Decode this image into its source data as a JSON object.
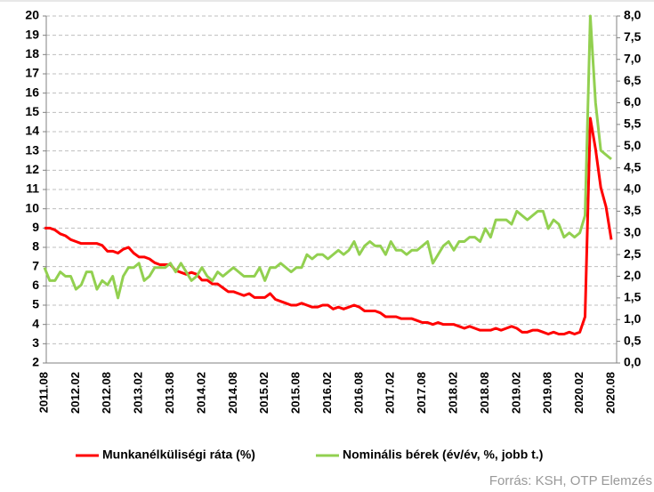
{
  "chart_data": {
    "type": "line",
    "categories": [
      "2011.08",
      null,
      null,
      null,
      null,
      null,
      "2012.02",
      null,
      null,
      null,
      null,
      null,
      "2012.08",
      null,
      null,
      null,
      null,
      null,
      "2013.02",
      null,
      null,
      null,
      null,
      null,
      "2013.08",
      null,
      null,
      null,
      null,
      null,
      "2014.02",
      null,
      null,
      null,
      null,
      null,
      "2014.08",
      null,
      null,
      null,
      null,
      null,
      "2015.02",
      null,
      null,
      null,
      null,
      null,
      "2015.08",
      null,
      null,
      null,
      null,
      null,
      "2016.02",
      null,
      null,
      null,
      null,
      null,
      "2016.08",
      null,
      null,
      null,
      null,
      null,
      "2017.02",
      null,
      null,
      null,
      null,
      null,
      "2017.08",
      null,
      null,
      null,
      null,
      null,
      "2018.02",
      null,
      null,
      null,
      null,
      null,
      "2018.08",
      null,
      null,
      null,
      null,
      null,
      "2019.02",
      null,
      null,
      null,
      null,
      null,
      "2019.08",
      null,
      null,
      null,
      null,
      null,
      "2020.02",
      null,
      null,
      null,
      null,
      null,
      "2020.08"
    ],
    "series": [
      {
        "name": "Munkanélküliségi ráta (%)",
        "color": "#ff0000",
        "axis": "y",
        "values": [
          9.0,
          9.0,
          8.9,
          8.7,
          8.6,
          8.4,
          8.3,
          8.2,
          8.2,
          8.2,
          8.2,
          8.1,
          7.8,
          7.8,
          7.7,
          7.9,
          8.0,
          7.7,
          7.5,
          7.5,
          7.4,
          7.2,
          7.1,
          7.1,
          7.1,
          6.8,
          6.7,
          6.6,
          6.7,
          6.6,
          6.3,
          6.3,
          6.1,
          6.1,
          5.9,
          5.7,
          5.7,
          5.6,
          5.5,
          5.6,
          5.4,
          5.4,
          5.4,
          5.6,
          5.3,
          5.2,
          5.1,
          5.0,
          5.0,
          5.1,
          5.0,
          4.9,
          4.9,
          5.0,
          5.0,
          4.8,
          4.9,
          4.8,
          4.9,
          5.0,
          4.9,
          4.7,
          4.7,
          4.7,
          4.6,
          4.4,
          4.4,
          4.4,
          4.3,
          4.3,
          4.3,
          4.2,
          4.1,
          4.1,
          4.0,
          4.1,
          4.0,
          4.0,
          4.0,
          3.9,
          3.8,
          3.9,
          3.8,
          3.7,
          3.7,
          3.7,
          3.8,
          3.7,
          3.8,
          3.9,
          3.8,
          3.6,
          3.6,
          3.7,
          3.7,
          3.6,
          3.5,
          3.6,
          3.5,
          3.5,
          3.6,
          3.5,
          3.6,
          4.4,
          14.7,
          13.1,
          11.1,
          10.1,
          8.4
        ]
      },
      {
        "name": "Nominális bérek (év/év, %, jobb t.)",
        "color": "#92d050",
        "axis": "y2",
        "values": [
          2.2,
          1.9,
          1.9,
          2.1,
          2.0,
          2.0,
          1.7,
          1.8,
          2.1,
          2.1,
          1.7,
          1.9,
          1.8,
          2.0,
          1.5,
          2.0,
          2.2,
          2.2,
          2.3,
          1.9,
          2.0,
          2.2,
          2.2,
          2.2,
          2.3,
          2.1,
          2.3,
          2.1,
          1.9,
          2.0,
          2.2,
          2.0,
          1.9,
          2.1,
          2.0,
          2.1,
          2.2,
          2.1,
          2.0,
          2.0,
          2.0,
          2.2,
          1.9,
          2.2,
          2.2,
          2.3,
          2.2,
          2.1,
          2.2,
          2.2,
          2.5,
          2.4,
          2.5,
          2.5,
          2.4,
          2.5,
          2.6,
          2.5,
          2.6,
          2.8,
          2.5,
          2.7,
          2.8,
          2.7,
          2.7,
          2.5,
          2.8,
          2.6,
          2.6,
          2.5,
          2.6,
          2.6,
          2.7,
          2.8,
          2.3,
          2.5,
          2.7,
          2.8,
          2.6,
          2.8,
          2.8,
          2.9,
          2.9,
          2.8,
          3.1,
          2.9,
          3.3,
          3.3,
          3.3,
          3.2,
          3.5,
          3.4,
          3.3,
          3.4,
          3.5,
          3.5,
          3.1,
          3.3,
          3.2,
          2.9,
          3.0,
          2.9,
          3.0,
          3.4,
          8.0,
          6.0,
          4.9,
          4.8,
          4.7
        ]
      }
    ],
    "ylim": [
      2,
      20
    ],
    "yticks": [
      2,
      3,
      4,
      5,
      6,
      7,
      8,
      9,
      10,
      11,
      12,
      13,
      14,
      15,
      16,
      17,
      18,
      19,
      20
    ],
    "y2lim": [
      0,
      8
    ],
    "y2ticks": [
      {
        "value": 0,
        "label": "0,0"
      },
      {
        "value": 0.5,
        "label": "0,5"
      },
      {
        "value": 1,
        "label": "1,0"
      },
      {
        "value": 1.5,
        "label": "1,5"
      },
      {
        "value": 2,
        "label": "2,0"
      },
      {
        "value": 2.5,
        "label": "2,5"
      },
      {
        "value": 3,
        "label": "3,0"
      },
      {
        "value": 3.5,
        "label": "3,5"
      },
      {
        "value": 4,
        "label": "4,0"
      },
      {
        "value": 4.5,
        "label": "4,5"
      },
      {
        "value": 5,
        "label": "5,0"
      },
      {
        "value": 5.5,
        "label": "5,5"
      },
      {
        "value": 6,
        "label": "6,0"
      },
      {
        "value": 6.5,
        "label": "6,5"
      },
      {
        "value": 7,
        "label": "7,0"
      },
      {
        "value": 7.5,
        "label": "7,5"
      },
      {
        "value": 8,
        "label": "8,0"
      }
    ],
    "grid": true,
    "legend": "bottom",
    "source": "Forrás: KSH, OTP Elemzés"
  }
}
